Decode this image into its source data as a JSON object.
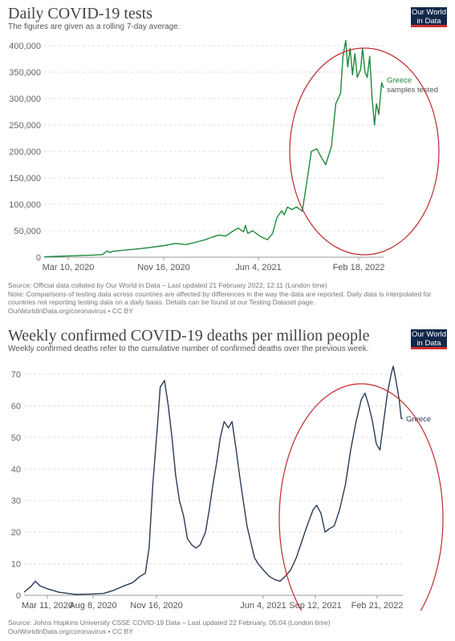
{
  "panels": [
    {
      "title": "Daily COVID-19 tests",
      "subtitle": "The figures are given as a rolling 7-day average.",
      "logo": [
        "Our World",
        "in Data"
      ],
      "sources": [
        "Source: Official data collated by Our World in Data – Last updated 21 February 2022, 12:11 (London time)",
        "Note: Comparisons of testing data across countries are affected by differences in the way the data are reported. Daily data is interpolated for countries not reporting testing data on a daily basis. Details can be found at our Testing Dataset page.",
        "OurWorldInData.org/coronavirus • CC BY"
      ]
    },
    {
      "title": "Weekly confirmed COVID-19 deaths per million people",
      "subtitle": "Weekly confirmed deaths refer to the cumulative number of confirmed deaths over the previous week.",
      "logo": [
        "Our World",
        "in Data"
      ],
      "sources": [
        "Source: Johns Hopkins University CSSE COVID-19 Data – Last updated 22 February, 05:04 (London time)",
        "OurWorldInData.org/coronavirus • CC BY"
      ]
    }
  ],
  "chart_data": [
    {
      "type": "line",
      "title": "Daily COVID-19 tests",
      "subtitle": "The figures are given as a rolling 7-day average.",
      "xlabel": "",
      "ylabel": "",
      "x_ticks": [
        "Mar 10, 2020",
        "Nov 16, 2020",
        "Jun 4, 2021",
        "Feb 18, 2022"
      ],
      "y_ticks": [
        "0",
        "50,000",
        "100,000",
        "150,000",
        "200,000",
        "250,000",
        "300,000",
        "350,000",
        "400,000"
      ],
      "ylim": [
        0,
        400000
      ],
      "xlim": [
        "2020-03-10",
        "2022-02-18"
      ],
      "grid": true,
      "legend": "right",
      "color": "#1e8a3c",
      "series": [
        {
          "name": "Greece",
          "sublabel": "samples tested",
          "points": [
            [
              "2020-03-10",
              600
            ],
            [
              "2020-04-01",
              1500
            ],
            [
              "2020-05-01",
              2500
            ],
            [
              "2020-06-01",
              3500
            ],
            [
              "2020-06-20",
              4000
            ],
            [
              "2020-07-10",
              5000
            ],
            [
              "2020-07-20",
              12000
            ],
            [
              "2020-07-25",
              9000
            ],
            [
              "2020-08-01",
              11000
            ],
            [
              "2020-08-20",
              13000
            ],
            [
              "2020-09-15",
              15000
            ],
            [
              "2020-10-15",
              18000
            ],
            [
              "2020-11-16",
              22000
            ],
            [
              "2020-12-10",
              26000
            ],
            [
              "2021-01-01",
              24000
            ],
            [
              "2021-01-20",
              28000
            ],
            [
              "2021-02-10",
              33000
            ],
            [
              "2021-02-25",
              38000
            ],
            [
              "2021-03-10",
              42000
            ],
            [
              "2021-03-25",
              40000
            ],
            [
              "2021-04-10",
              50000
            ],
            [
              "2021-04-20",
              55000
            ],
            [
              "2021-05-01",
              48000
            ],
            [
              "2021-05-05",
              60000
            ],
            [
              "2021-05-10",
              45000
            ],
            [
              "2021-05-20",
              50000
            ],
            [
              "2021-06-04",
              40000
            ],
            [
              "2021-06-20",
              33000
            ],
            [
              "2021-07-01",
              45000
            ],
            [
              "2021-07-10",
              75000
            ],
            [
              "2021-07-20",
              88000
            ],
            [
              "2021-07-25",
              80000
            ],
            [
              "2021-08-01",
              95000
            ],
            [
              "2021-08-10",
              90000
            ],
            [
              "2021-08-20",
              95000
            ],
            [
              "2021-09-01",
              87000
            ],
            [
              "2021-09-10",
              140000
            ],
            [
              "2021-09-20",
              200000
            ],
            [
              "2021-10-01",
              205000
            ],
            [
              "2021-10-10",
              190000
            ],
            [
              "2021-10-20",
              175000
            ],
            [
              "2021-11-01",
              210000
            ],
            [
              "2021-11-10",
              290000
            ],
            [
              "2021-11-20",
              310000
            ],
            [
              "2021-11-25",
              380000
            ],
            [
              "2021-12-01",
              410000
            ],
            [
              "2021-12-05",
              360000
            ],
            [
              "2021-12-10",
              395000
            ],
            [
              "2021-12-15",
              345000
            ],
            [
              "2021-12-20",
              385000
            ],
            [
              "2021-12-25",
              340000
            ],
            [
              "2022-01-01",
              355000
            ],
            [
              "2022-01-05",
              395000
            ],
            [
              "2022-01-10",
              350000
            ],
            [
              "2022-01-15",
              340000
            ],
            [
              "2022-01-20",
              380000
            ],
            [
              "2022-01-25",
              300000
            ],
            [
              "2022-01-30",
              250000
            ],
            [
              "2022-02-03",
              290000
            ],
            [
              "2022-02-08",
              270000
            ],
            [
              "2022-02-14",
              330000
            ],
            [
              "2022-02-18",
              320000
            ]
          ]
        }
      ]
    },
    {
      "type": "line",
      "title": "Weekly confirmed COVID-19 deaths per million people",
      "subtitle": "Weekly confirmed deaths refer to the cumulative number of confirmed deaths over the previous week.",
      "xlabel": "",
      "ylabel": "",
      "x_ticks": [
        "Mar 11, 2020",
        "Aug 8, 2020",
        "Nov 16, 2020",
        "Jun 4, 2021",
        "Sep 12, 2021",
        "Feb 21, 2022"
      ],
      "y_ticks": [
        "0",
        "10",
        "20",
        "30",
        "40",
        "50",
        "60",
        "70"
      ],
      "ylim": [
        0,
        70
      ],
      "xlim": [
        "2020-03-11",
        "2022-02-21"
      ],
      "grid": true,
      "legend": "right",
      "color": "#2b3a55",
      "series": [
        {
          "name": "Greece",
          "points": [
            [
              "2020-03-11",
              1
            ],
            [
              "2020-03-25",
              3
            ],
            [
              "2020-04-01",
              4.5
            ],
            [
              "2020-04-10",
              3
            ],
            [
              "2020-04-25",
              2
            ],
            [
              "2020-05-15",
              1
            ],
            [
              "2020-06-15",
              0.3
            ],
            [
              "2020-07-15",
              0.4
            ],
            [
              "2020-08-08",
              0.6
            ],
            [
              "2020-08-25",
              1.5
            ],
            [
              "2020-09-15",
              3
            ],
            [
              "2020-10-01",
              4
            ],
            [
              "2020-10-15",
              6
            ],
            [
              "2020-10-25",
              7
            ],
            [
              "2020-11-01",
              15
            ],
            [
              "2020-11-08",
              35
            ],
            [
              "2020-11-16",
              52
            ],
            [
              "2020-11-22",
              66
            ],
            [
              "2020-11-30",
              68
            ],
            [
              "2020-12-07",
              60
            ],
            [
              "2020-12-14",
              50
            ],
            [
              "2020-12-21",
              38
            ],
            [
              "2020-12-28",
              30
            ],
            [
              "2021-01-05",
              25
            ],
            [
              "2021-01-12",
              18
            ],
            [
              "2021-01-20",
              16
            ],
            [
              "2021-01-28",
              15
            ],
            [
              "2021-02-05",
              16
            ],
            [
              "2021-02-15",
              20
            ],
            [
              "2021-02-22",
              27
            ],
            [
              "2021-03-01",
              35
            ],
            [
              "2021-03-08",
              42
            ],
            [
              "2021-03-15",
              50
            ],
            [
              "2021-03-22",
              55
            ],
            [
              "2021-03-30",
              53
            ],
            [
              "2021-04-06",
              55
            ],
            [
              "2021-04-13",
              47
            ],
            [
              "2021-04-20",
              38
            ],
            [
              "2021-04-27",
              30
            ],
            [
              "2021-05-04",
              22
            ],
            [
              "2021-05-11",
              17
            ],
            [
              "2021-05-18",
              12
            ],
            [
              "2021-05-25",
              10
            ],
            [
              "2021-06-04",
              8
            ],
            [
              "2021-06-15",
              6
            ],
            [
              "2021-06-25",
              5
            ],
            [
              "2021-07-05",
              4.5
            ],
            [
              "2021-07-15",
              6
            ],
            [
              "2021-07-25",
              8
            ],
            [
              "2021-08-05",
              12
            ],
            [
              "2021-08-15",
              17
            ],
            [
              "2021-08-25",
              22
            ],
            [
              "2021-09-05",
              27
            ],
            [
              "2021-09-12",
              28.5
            ],
            [
              "2021-09-20",
              26
            ],
            [
              "2021-09-28",
              20
            ],
            [
              "2021-10-05",
              21
            ],
            [
              "2021-10-15",
              22
            ],
            [
              "2021-10-25",
              27
            ],
            [
              "2021-11-05",
              35
            ],
            [
              "2021-11-15",
              46
            ],
            [
              "2021-11-25",
              55
            ],
            [
              "2021-12-05",
              62
            ],
            [
              "2021-12-12",
              64
            ],
            [
              "2021-12-19",
              60
            ],
            [
              "2021-12-26",
              55
            ],
            [
              "2022-01-02",
              48
            ],
            [
              "2022-01-09",
              46
            ],
            [
              "2022-01-16",
              55
            ],
            [
              "2022-01-23",
              64
            ],
            [
              "2022-01-30",
              70
            ],
            [
              "2022-02-03",
              72.5
            ],
            [
              "2022-02-08",
              68
            ],
            [
              "2022-02-14",
              62
            ],
            [
              "2022-02-18",
              56
            ],
            [
              "2022-02-21",
              56
            ]
          ]
        }
      ]
    }
  ]
}
